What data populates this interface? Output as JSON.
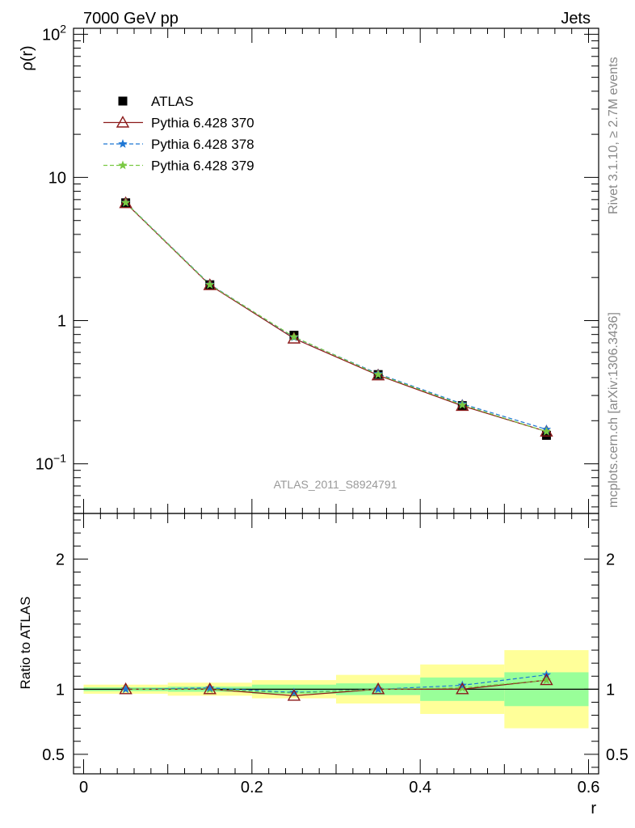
{
  "header": {
    "left": "7000 GeV pp",
    "right": "Jets"
  },
  "side_labels": {
    "rivet": "Rivet 3.1.10, ≥ 2.7M events",
    "mcplots": "mcplots.cern.ch [arXiv:1306.3436]"
  },
  "watermark": "ATLAS_2011_S8924791",
  "chart_data": [
    {
      "type": "line",
      "panel": "main",
      "ylabel": "ρ(r)",
      "xlabel": "",
      "yscale": "log",
      "xlim": [
        -0.012,
        0.612
      ],
      "ylim": [
        0.045,
        110
      ],
      "y_ticks": [
        {
          "value": 0.1,
          "base": "10",
          "exp": "−1"
        },
        {
          "value": 1,
          "text": "1"
        },
        {
          "value": 10,
          "text": "10"
        },
        {
          "value": 100,
          "base": "10",
          "exp": "2"
        }
      ],
      "x": [
        0.05,
        0.15,
        0.25,
        0.35,
        0.45,
        0.55
      ],
      "x_bins": [
        [
          0.0,
          0.1
        ],
        [
          0.1,
          0.2
        ],
        [
          0.2,
          0.3
        ],
        [
          0.3,
          0.4
        ],
        [
          0.4,
          0.5
        ],
        [
          0.5,
          0.6
        ]
      ],
      "series": [
        {
          "name": "ATLAS",
          "style": "data",
          "color": "#000000",
          "marker": "square",
          "values": [
            6.65,
            1.78,
            0.79,
            0.42,
            0.255,
            0.158
          ]
        },
        {
          "name": "Pythia 6.428 370",
          "style": "solid",
          "color": "#8b1a1a",
          "marker": "triangle-open",
          "values": [
            6.62,
            1.77,
            0.75,
            0.415,
            0.254,
            0.168
          ]
        },
        {
          "name": "Pythia 6.428 378",
          "style": "dashed",
          "color": "#1f77d4",
          "marker": "star",
          "values": [
            6.68,
            1.79,
            0.765,
            0.425,
            0.262,
            0.174
          ]
        },
        {
          "name": "Pythia 6.428 379",
          "style": "dashed",
          "color": "#7ac943",
          "marker": "star",
          "values": [
            6.66,
            1.78,
            0.77,
            0.42,
            0.258,
            0.168
          ]
        }
      ],
      "legend": "top-left"
    },
    {
      "type": "line",
      "panel": "ratio",
      "ylabel": "Ratio to ATLAS",
      "xlabel": "r",
      "xlim": [
        -0.012,
        0.612
      ],
      "ylim": [
        0.35,
        2.35
      ],
      "y_ticks": [
        0.5,
        1,
        2
      ],
      "x_ticks": [
        0,
        0.2,
        0.4,
        0.6
      ],
      "x_tick_labels": [
        "0",
        "0.2",
        "0.4",
        "0.6"
      ],
      "reference_line": 1,
      "bands": {
        "x_bins": [
          [
            0.0,
            0.1
          ],
          [
            0.1,
            0.2
          ],
          [
            0.2,
            0.3
          ],
          [
            0.3,
            0.4
          ],
          [
            0.4,
            0.5
          ],
          [
            0.5,
            0.6
          ]
        ],
        "inner": [
          [
            0.985,
            1.015
          ],
          [
            0.98,
            1.02
          ],
          [
            0.965,
            1.035
          ],
          [
            0.955,
            1.045
          ],
          [
            0.91,
            1.09
          ],
          [
            0.87,
            1.13
          ]
        ],
        "outer": [
          [
            0.965,
            1.035
          ],
          [
            0.95,
            1.05
          ],
          [
            0.93,
            1.07
          ],
          [
            0.89,
            1.11
          ],
          [
            0.81,
            1.19
          ],
          [
            0.7,
            1.3
          ]
        ],
        "inner_color": "#99ff99",
        "outer_color": "#ffff99"
      },
      "x": [
        0.05,
        0.15,
        0.25,
        0.35,
        0.45,
        0.55
      ],
      "series": [
        {
          "name": "Pythia 6.428 370",
          "style": "solid",
          "color": "#8b1a1a",
          "marker": "triangle-open",
          "values": [
            1.0,
            1.0,
            0.95,
            1.0,
            1.0,
            1.07
          ]
        },
        {
          "name": "Pythia 6.428 378",
          "style": "dashed",
          "color": "#1f77d4",
          "marker": "star",
          "values": [
            1.0,
            1.01,
            0.975,
            1.0,
            1.03,
            1.11
          ]
        },
        {
          "name": "Pythia 6.428 379",
          "style": "dashed",
          "color": "#7ac943",
          "marker": "star",
          "values": [
            1.0,
            1.0,
            0.97,
            1.0,
            1.01,
            1.07
          ]
        }
      ]
    }
  ]
}
